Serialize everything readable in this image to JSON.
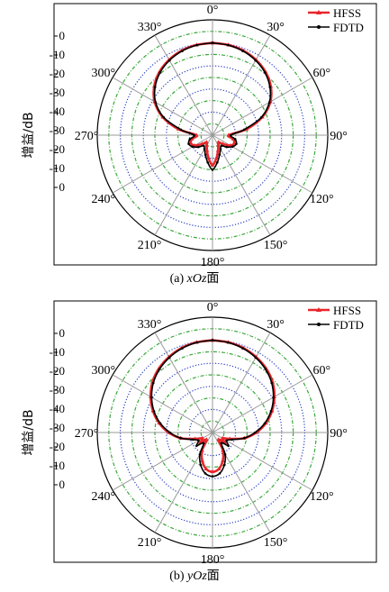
{
  "chart_data": [
    {
      "type": "polar-line",
      "caption_prefix": "(a) ",
      "caption_italic": "xOz",
      "caption_suffix": "面",
      "ylabel": "增益/dB",
      "radial_ticks": [
        "0",
        "-10",
        "-20",
        "-30",
        "-40",
        "-30",
        "-20",
        "-10",
        "0"
      ],
      "angle_labels": [
        "0°",
        "30°",
        "60°",
        "90°",
        "120°",
        "150°",
        "180°",
        "210°",
        "240°",
        "270°",
        "300°",
        "330°"
      ],
      "rlim_db": [
        -40,
        10
      ],
      "legend_position": "top-right",
      "series": [
        {
          "name": "HFSS",
          "color": "#e8262b",
          "theta_deg": [
            0,
            10,
            20,
            30,
            40,
            50,
            60,
            70,
            80,
            90,
            100,
            110,
            120,
            130,
            140,
            150,
            160,
            170,
            180,
            190,
            200,
            210,
            220,
            230,
            240,
            250,
            260,
            270,
            280,
            290,
            300,
            310,
            320,
            330,
            340,
            350,
            360
          ],
          "gain_db": [
            0,
            -0.3,
            -1,
            -2.3,
            -4.2,
            -7,
            -11,
            -17,
            -25,
            -33,
            -31,
            -30,
            -31,
            -34,
            -36,
            -35,
            -33,
            -30,
            -27,
            -30,
            -33,
            -35,
            -36,
            -34,
            -31,
            -30,
            -31,
            -33,
            -25,
            -17,
            -11,
            -7,
            -4.2,
            -2.3,
            -1,
            -0.3,
            0
          ]
        },
        {
          "name": "FDTD",
          "color": "#000000",
          "theta_deg": [
            0,
            10,
            20,
            30,
            40,
            50,
            60,
            70,
            80,
            90,
            100,
            110,
            120,
            130,
            140,
            150,
            160,
            170,
            180,
            190,
            200,
            210,
            220,
            230,
            240,
            250,
            260,
            270,
            280,
            290,
            300,
            310,
            320,
            330,
            340,
            350,
            360
          ],
          "gain_db": [
            0,
            -0.4,
            -1.2,
            -2.6,
            -4.6,
            -7.5,
            -11.5,
            -17.5,
            -26,
            -32,
            -30,
            -29,
            -30,
            -32,
            -34,
            -33,
            -31,
            -28,
            -25,
            -28,
            -31,
            -33,
            -34,
            -32,
            -30,
            -29,
            -30,
            -32,
            -26,
            -17.5,
            -11.5,
            -7.5,
            -4.6,
            -2.6,
            -1.2,
            -0.4,
            0
          ]
        }
      ]
    },
    {
      "type": "polar-line",
      "caption_prefix": "(b) ",
      "caption_italic": "yOz",
      "caption_suffix": "面",
      "ylabel": "增益/dB",
      "radial_ticks": [
        "0",
        "-10",
        "-20",
        "-30",
        "-40",
        "-30",
        "-20",
        "-10",
        "0"
      ],
      "angle_labels": [
        "0°",
        "30°",
        "60°",
        "90°",
        "120°",
        "150°",
        "180°",
        "210°",
        "240°",
        "270°",
        "300°",
        "330°"
      ],
      "rlim_db": [
        -40,
        10
      ],
      "legend_position": "top-right",
      "series": [
        {
          "name": "HFSS",
          "color": "#e8262b",
          "theta_deg": [
            0,
            10,
            20,
            30,
            40,
            50,
            60,
            70,
            80,
            90,
            100,
            110,
            120,
            130,
            140,
            150,
            160,
            170,
            180,
            190,
            200,
            210,
            220,
            230,
            240,
            250,
            260,
            270,
            280,
            290,
            300,
            310,
            320,
            330,
            340,
            350,
            360
          ],
          "gain_db": [
            0,
            -0.3,
            -1,
            -2.2,
            -3.8,
            -6,
            -9,
            -12.5,
            -16.5,
            -21,
            -26,
            -32,
            -35,
            -33,
            -36,
            -31,
            -27,
            -24,
            -23,
            -24,
            -27,
            -31,
            -36,
            -33,
            -35,
            -32,
            -26,
            -21,
            -16.5,
            -12.5,
            -9,
            -6,
            -3.8,
            -2.2,
            -1,
            -0.3,
            0
          ]
        },
        {
          "name": "FDTD",
          "color": "#000000",
          "theta_deg": [
            0,
            10,
            20,
            30,
            40,
            50,
            60,
            70,
            80,
            90,
            100,
            110,
            120,
            130,
            140,
            150,
            160,
            170,
            180,
            190,
            200,
            210,
            220,
            230,
            240,
            250,
            260,
            270,
            280,
            290,
            300,
            310,
            320,
            330,
            340,
            350,
            360
          ],
          "gain_db": [
            0,
            -0.4,
            -1.2,
            -2.5,
            -4.2,
            -6.5,
            -9.5,
            -13,
            -17,
            -21.5,
            -26,
            -31,
            -33,
            -31,
            -34,
            -29,
            -25,
            -22,
            -21,
            -22,
            -25,
            -29,
            -34,
            -31,
            -33,
            -31,
            -26,
            -21.5,
            -17,
            -13,
            -9.5,
            -6.5,
            -4.2,
            -2.5,
            -1.2,
            -0.4,
            0
          ]
        }
      ]
    }
  ]
}
